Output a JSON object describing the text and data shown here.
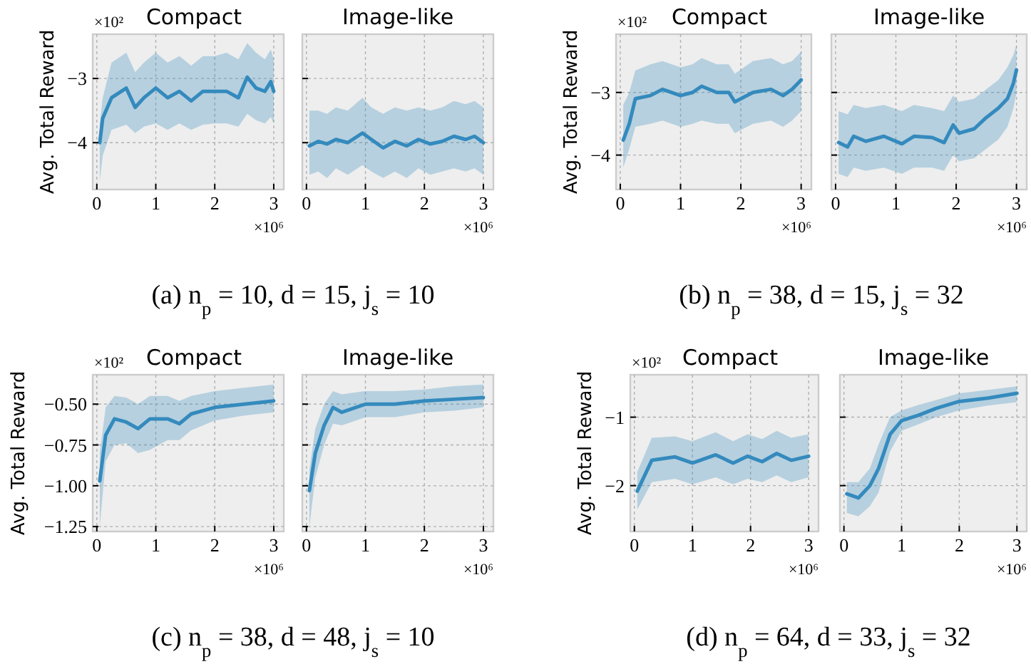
{
  "chart_data": [
    {
      "type": "line",
      "title": "Compact",
      "ylabel": "Avg. Total Reward",
      "annotations": [
        "×10²",
        "×10⁶",
        "(a) n$_{p}$ = 10, d = 15, j$_{s}$ = 10"
      ],
      "x": [
        0.05,
        0.1,
        0.25,
        0.5,
        0.65,
        0.8,
        1.0,
        1.2,
        1.4,
        1.6,
        1.8,
        2.0,
        2.2,
        2.4,
        2.55,
        2.7,
        2.85,
        2.95,
        3.0
      ],
      "series": [
        {
          "color": "#348abd",
          "values": [
            -4.0,
            -3.62,
            -3.3,
            -3.15,
            -3.45,
            -3.3,
            -3.15,
            -3.3,
            -3.2,
            -3.35,
            -3.2,
            -3.2,
            -3.2,
            -3.3,
            -2.98,
            -3.15,
            -3.2,
            -3.05,
            -3.2
          ],
          "lower": [
            -4.6,
            -4.2,
            -3.8,
            -3.72,
            -3.85,
            -3.75,
            -3.7,
            -3.8,
            -3.7,
            -3.8,
            -3.72,
            -3.7,
            -3.7,
            -3.75,
            -3.55,
            -3.65,
            -3.7,
            -3.6,
            -3.7
          ],
          "upper": [
            -3.7,
            -3.3,
            -2.75,
            -2.6,
            -2.9,
            -2.75,
            -2.6,
            -2.75,
            -2.65,
            -2.8,
            -2.65,
            -2.65,
            -2.6,
            -2.7,
            -2.45,
            -2.6,
            -2.7,
            -2.55,
            -2.7
          ]
        }
      ],
      "xlim": [
        -0.07,
        3.17
      ],
      "ylim": [
        -4.73,
        -2.31
      ],
      "xticks": [
        0,
        1,
        2,
        3
      ],
      "yticks": [
        {
          "value": -4,
          "label": "−4"
        },
        {
          "value": -3,
          "label": "−3"
        }
      ],
      "grid": true,
      "line_style": "solid",
      "marker": "none"
    },
    {
      "type": "line",
      "title": "Image-like",
      "annotations": [
        "×10⁶"
      ],
      "x": [
        0.05,
        0.2,
        0.35,
        0.5,
        0.7,
        0.95,
        1.1,
        1.3,
        1.5,
        1.7,
        1.9,
        2.1,
        2.3,
        2.5,
        2.7,
        2.85,
        3.0
      ],
      "series": [
        {
          "color": "#348abd",
          "values": [
            -4.05,
            -3.98,
            -4.02,
            -3.95,
            -4.0,
            -3.85,
            -3.95,
            -4.08,
            -3.98,
            -4.05,
            -3.95,
            -4.02,
            -3.98,
            -3.9,
            -3.95,
            -3.9,
            -4.0
          ],
          "lower": [
            -4.5,
            -4.45,
            -4.55,
            -4.4,
            -4.5,
            -4.35,
            -4.45,
            -4.55,
            -4.45,
            -4.55,
            -4.4,
            -4.5,
            -4.45,
            -4.4,
            -4.45,
            -4.4,
            -4.5
          ],
          "upper": [
            -3.5,
            -3.5,
            -3.55,
            -3.45,
            -3.5,
            -3.3,
            -3.45,
            -3.55,
            -3.45,
            -3.5,
            -3.45,
            -3.5,
            -3.45,
            -3.35,
            -3.4,
            -3.35,
            -3.45
          ]
        }
      ],
      "xlim": [
        -0.07,
        3.17
      ],
      "ylim": [
        -4.73,
        -2.31
      ],
      "xticks": [
        0,
        1,
        2,
        3
      ],
      "yticks": [
        {
          "value": -4,
          "label": null
        },
        {
          "value": -3,
          "label": null
        }
      ],
      "grid": true,
      "tick_labels": "x",
      "line_style": "solid",
      "marker": "none"
    },
    {
      "type": "line",
      "title": "Compact",
      "ylabel": "Avg. Total Reward",
      "annotations": [
        "×10²",
        "×10⁶",
        "(b) n$_{p}$ = 38, d = 15, j$_{s}$ = 32"
      ],
      "x": [
        0.05,
        0.15,
        0.25,
        0.5,
        0.7,
        1.0,
        1.2,
        1.35,
        1.6,
        1.8,
        1.9,
        2.2,
        2.5,
        2.7,
        2.85,
        3.0
      ],
      "series": [
        {
          "color": "#348abd",
          "values": [
            -3.76,
            -3.5,
            -3.1,
            -3.05,
            -2.95,
            -3.05,
            -3.0,
            -2.9,
            -3.0,
            -3.0,
            -3.15,
            -3.0,
            -2.95,
            -3.05,
            -2.95,
            -2.8
          ],
          "lower": [
            -4.2,
            -3.9,
            -3.55,
            -3.5,
            -3.45,
            -3.55,
            -3.5,
            -3.45,
            -3.5,
            -3.5,
            -3.65,
            -3.5,
            -3.45,
            -3.55,
            -3.45,
            -3.3
          ],
          "upper": [
            -3.2,
            -3.0,
            -2.65,
            -2.55,
            -2.5,
            -2.6,
            -2.55,
            -2.45,
            -2.55,
            -2.55,
            -2.7,
            -2.5,
            -2.45,
            -2.55,
            -2.5,
            -2.35
          ]
        }
      ],
      "xlim": [
        -0.07,
        3.17
      ],
      "ylim": [
        -4.55,
        -2.07
      ],
      "xticks": [
        0,
        1,
        2,
        3
      ],
      "yticks": [
        {
          "value": -4,
          "label": "−4"
        },
        {
          "value": -3,
          "label": "−3"
        }
      ],
      "grid": true,
      "line_style": "solid",
      "marker": "none"
    },
    {
      "type": "line",
      "title": "Image-like",
      "annotations": [
        "×10⁶"
      ],
      "x": [
        0.05,
        0.2,
        0.3,
        0.5,
        0.8,
        1.1,
        1.3,
        1.6,
        1.8,
        1.95,
        2.05,
        2.3,
        2.5,
        2.7,
        2.85,
        2.95,
        3.0
      ],
      "series": [
        {
          "color": "#348abd",
          "values": [
            -3.8,
            -3.87,
            -3.7,
            -3.78,
            -3.7,
            -3.82,
            -3.7,
            -3.72,
            -3.8,
            -3.52,
            -3.65,
            -3.58,
            -3.4,
            -3.25,
            -3.1,
            -2.85,
            -2.64
          ],
          "lower": [
            -4.3,
            -4.35,
            -4.2,
            -4.25,
            -4.2,
            -4.3,
            -4.2,
            -4.2,
            -4.25,
            -4.0,
            -4.1,
            -4.05,
            -3.9,
            -3.75,
            -3.55,
            -3.25,
            -3.0
          ],
          "upper": [
            -3.3,
            -3.35,
            -3.2,
            -3.25,
            -3.2,
            -3.3,
            -3.2,
            -3.25,
            -3.3,
            -3.05,
            -3.15,
            -3.1,
            -2.95,
            -2.8,
            -2.6,
            -2.4,
            -2.24
          ]
        }
      ],
      "xlim": [
        -0.07,
        3.17
      ],
      "ylim": [
        -4.55,
        -2.07
      ],
      "xticks": [
        0,
        1,
        2,
        3
      ],
      "yticks": [
        {
          "value": -4,
          "label": null
        },
        {
          "value": -3,
          "label": null
        }
      ],
      "grid": true,
      "tick_labels": "x",
      "line_style": "solid",
      "marker": "none"
    },
    {
      "type": "line",
      "title": "Compact",
      "ylabel": "Avg. Total Reward",
      "annotations": [
        "×10²",
        "×10⁶",
        "(c) n$_{p}$ = 38, d = 48, j$_{s}$ = 10"
      ],
      "x": [
        0.05,
        0.15,
        0.3,
        0.5,
        0.7,
        0.9,
        1.2,
        1.4,
        1.6,
        2.0,
        2.5,
        3.0
      ],
      "series": [
        {
          "color": "#348abd",
          "values": [
            -0.97,
            -0.69,
            -0.59,
            -0.61,
            -0.65,
            -0.59,
            -0.59,
            -0.62,
            -0.56,
            -0.52,
            -0.5,
            -0.48
          ],
          "lower": [
            -1.25,
            -0.85,
            -0.75,
            -0.74,
            -0.8,
            -0.78,
            -0.72,
            -0.72,
            -0.66,
            -0.6,
            -0.57,
            -0.55
          ],
          "upper": [
            -0.8,
            -0.52,
            -0.45,
            -0.46,
            -0.5,
            -0.45,
            -0.45,
            -0.48,
            -0.45,
            -0.42,
            -0.4,
            -0.38
          ]
        }
      ],
      "xlim": [
        -0.07,
        3.17
      ],
      "ylim": [
        -1.28,
        -0.32
      ],
      "xticks": [
        0,
        1,
        2,
        3
      ],
      "yticks": [
        {
          "value": -1.25,
          "label": "−1.25"
        },
        {
          "value": -1.0,
          "label": "−1.00"
        },
        {
          "value": -0.75,
          "label": "−0.75"
        },
        {
          "value": -0.5,
          "label": "−0.50"
        }
      ],
      "grid": true,
      "line_style": "solid",
      "marker": "none"
    },
    {
      "type": "line",
      "title": "Image-like",
      "annotations": [
        "×10⁶"
      ],
      "x": [
        0.05,
        0.15,
        0.3,
        0.45,
        0.6,
        1.0,
        1.5,
        2.0,
        2.5,
        3.0
      ],
      "series": [
        {
          "color": "#348abd",
          "values": [
            -1.03,
            -0.8,
            -0.63,
            -0.52,
            -0.55,
            -0.5,
            -0.5,
            -0.48,
            -0.47,
            -0.46
          ],
          "lower": [
            -1.25,
            -0.95,
            -0.75,
            -0.62,
            -0.63,
            -0.58,
            -0.58,
            -0.55,
            -0.54,
            -0.52
          ],
          "upper": [
            -0.9,
            -0.65,
            -0.5,
            -0.42,
            -0.44,
            -0.42,
            -0.42,
            -0.41,
            -0.39,
            -0.38
          ]
        }
      ],
      "xlim": [
        -0.07,
        3.17
      ],
      "ylim": [
        -1.28,
        -0.32
      ],
      "xticks": [
        0,
        1,
        2,
        3
      ],
      "yticks": [
        {
          "value": -1.25,
          "label": null
        },
        {
          "value": -1.0,
          "label": null
        },
        {
          "value": -0.75,
          "label": null
        },
        {
          "value": -0.5,
          "label": null
        }
      ],
      "grid": true,
      "tick_labels": "x",
      "line_style": "solid",
      "marker": "none"
    },
    {
      "type": "line",
      "title": "Compact",
      "ylabel": "Avg. Total Reward",
      "annotations": [
        "×10²",
        "×10⁶",
        "(d) n$_{p}$ = 64, d = 33, j$_{s}$ = 32"
      ],
      "x": [
        0.05,
        0.3,
        0.7,
        1.0,
        1.4,
        1.7,
        1.95,
        2.2,
        2.45,
        2.7,
        3.0
      ],
      "series": [
        {
          "color": "#348abd",
          "values": [
            -2.08,
            -1.63,
            -1.58,
            -1.67,
            -1.55,
            -1.67,
            -1.57,
            -1.65,
            -1.53,
            -1.63,
            -1.57
          ],
          "lower": [
            -2.35,
            -1.95,
            -1.9,
            -1.98,
            -1.88,
            -1.98,
            -1.9,
            -1.95,
            -1.85,
            -1.95,
            -1.88
          ],
          "upper": [
            -1.8,
            -1.3,
            -1.28,
            -1.35,
            -1.22,
            -1.35,
            -1.25,
            -1.32,
            -1.2,
            -1.3,
            -1.25
          ]
        }
      ],
      "xlim": [
        -0.07,
        3.17
      ],
      "ylim": [
        -2.67,
        -0.38
      ],
      "xticks": [
        0,
        1,
        2,
        3
      ],
      "yticks": [
        {
          "value": -2,
          "label": "−2"
        },
        {
          "value": -1,
          "label": "−1"
        }
      ],
      "grid": true,
      "line_style": "solid",
      "marker": "none"
    },
    {
      "type": "line",
      "title": "Image-like",
      "annotations": [
        "×10⁶"
      ],
      "x": [
        0.05,
        0.25,
        0.45,
        0.6,
        0.8,
        1.0,
        1.3,
        1.6,
        2.0,
        2.5,
        3.0
      ],
      "series": [
        {
          "color": "#348abd",
          "values": [
            -2.12,
            -2.18,
            -2.0,
            -1.75,
            -1.25,
            -1.05,
            -0.97,
            -0.87,
            -0.77,
            -0.72,
            -0.65
          ],
          "lower": [
            -2.4,
            -2.45,
            -2.3,
            -2.1,
            -1.5,
            -1.2,
            -1.1,
            -1.0,
            -0.9,
            -0.83,
            -0.78
          ],
          "upper": [
            -1.95,
            -1.95,
            -1.75,
            -1.4,
            -1.0,
            -0.9,
            -0.82,
            -0.75,
            -0.65,
            -0.6,
            -0.55
          ]
        }
      ],
      "xlim": [
        -0.07,
        3.17
      ],
      "ylim": [
        -2.67,
        -0.38
      ],
      "xticks": [
        0,
        1,
        2,
        3
      ],
      "yticks": [
        {
          "value": -2,
          "label": null
        },
        {
          "value": -1,
          "label": null
        }
      ],
      "grid": true,
      "tick_labels": "x",
      "line_style": "solid",
      "marker": "none"
    }
  ]
}
